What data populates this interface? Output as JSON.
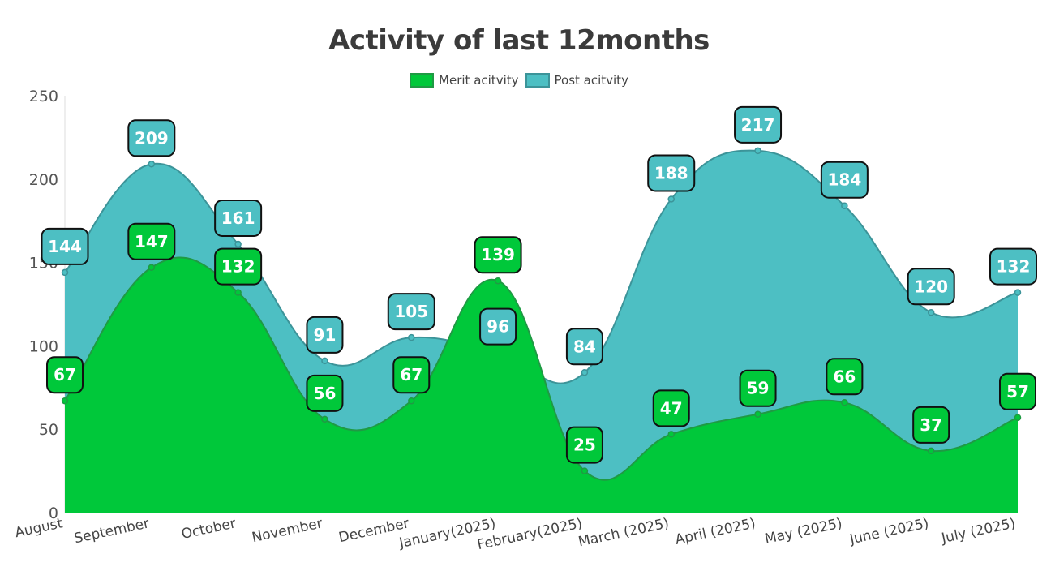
{
  "chart_data": {
    "type": "area",
    "title": "Activity of last 12months",
    "categories": [
      "August",
      "September",
      "October",
      "November",
      "December",
      "January(2025)",
      "February(2025)",
      "March (2025)",
      "April (2025)",
      "May (2025)",
      "June (2025)",
      "July (2025)"
    ],
    "series": [
      {
        "name": "Post acitvity",
        "values": [
          144,
          209,
          161,
          91,
          105,
          96,
          84,
          188,
          217,
          184,
          120,
          132
        ],
        "color": "#4dbfc3",
        "line": "#3c9499"
      },
      {
        "name": "Merit acitvity",
        "values": [
          67,
          147,
          132,
          56,
          67,
          139,
          25,
          47,
          59,
          66,
          37,
          57
        ],
        "color": "#00c83a",
        "line": "#1f9a44"
      }
    ],
    "ylim": [
      0,
      250
    ],
    "yticks": [
      0,
      50,
      100,
      150,
      200,
      250
    ],
    "xlabel": "",
    "ylabel": "",
    "legend": "top-center",
    "grid": false,
    "data_labels": true
  }
}
